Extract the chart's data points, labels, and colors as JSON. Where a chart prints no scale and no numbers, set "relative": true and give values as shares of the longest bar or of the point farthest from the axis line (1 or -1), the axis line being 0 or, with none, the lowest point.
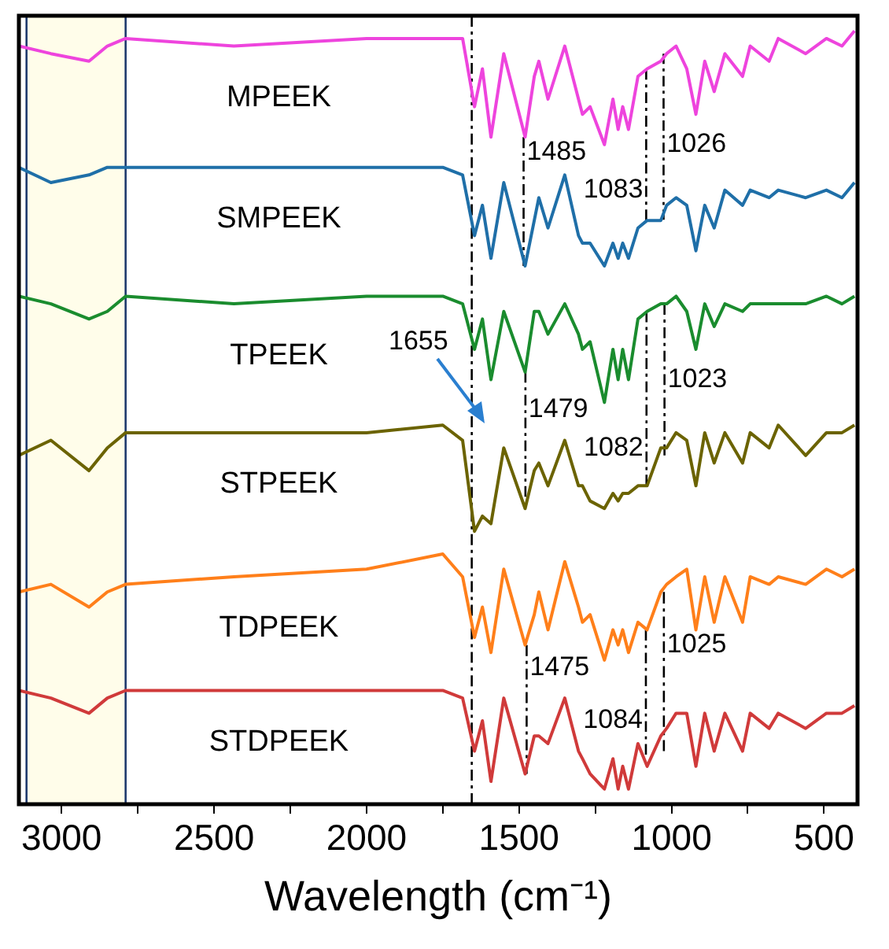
{
  "chart_data": {
    "type": "line",
    "relative": true,
    "xlabel": "Wavelength (cm⁻¹)",
    "xlim": [
      3140,
      390
    ],
    "xticks": [
      3000,
      {
        "value": 2750,
        "label": null
      },
      2500,
      {
        "value": 2250,
        "label": null
      },
      2000,
      {
        "value": 1750,
        "label": null
      },
      1500,
      {
        "value": 1250,
        "label": null
      },
      1000,
      {
        "value": 750,
        "label": null
      },
      500
    ],
    "legend": false,
    "marker": "none",
    "line_style": "solid",
    "x": [
      3140,
      3035,
      2910,
      2850,
      2790,
      2435,
      2000,
      1750,
      1685,
      1646,
      1620,
      1592,
      1550,
      1480,
      1450,
      1435,
      1405,
      1350,
      1305,
      1292,
      1267,
      1220,
      1192,
      1175,
      1160,
      1141,
      1110,
      1080,
      1035,
      1016,
      985,
      950,
      920,
      891,
      860,
      825,
      767,
      742,
      680,
      650,
      560,
      492,
      441,
      400
    ],
    "series": [
      {
        "name": "MPEEK",
        "color": "#ee44dd",
        "values": [
          0.98,
          0.97,
          0.96,
          0.98,
          0.99,
          0.98,
          0.99,
          0.99,
          0.99,
          0.9,
          0.95,
          0.86,
          0.97,
          0.86,
          0.94,
          0.96,
          0.91,
          0.98,
          0.91,
          0.89,
          0.9,
          0.85,
          0.91,
          0.87,
          0.9,
          0.87,
          0.94,
          0.95,
          0.96,
          0.97,
          0.98,
          0.95,
          0.89,
          0.96,
          0.92,
          0.97,
          0.94,
          0.98,
          0.96,
          0.99,
          0.97,
          0.99,
          0.98,
          1
        ]
      },
      {
        "name": "SMPEEK",
        "color": "#1f6fa8",
        "values": [
          0.82,
          0.8,
          0.81,
          0.82,
          0.82,
          0.82,
          0.82,
          0.82,
          0.81,
          0.73,
          0.77,
          0.7,
          0.8,
          0.69,
          0.75,
          0.78,
          0.74,
          0.81,
          0.73,
          0.72,
          0.72,
          0.69,
          0.72,
          0.7,
          0.72,
          0.7,
          0.74,
          0.75,
          0.75,
          0.77,
          0.78,
          0.77,
          0.71,
          0.77,
          0.74,
          0.79,
          0.77,
          0.79,
          0.78,
          0.79,
          0.78,
          0.79,
          0.78,
          0.8
        ]
      },
      {
        "name": "TPEEK",
        "color": "#1a8c2e",
        "values": [
          0.65,
          0.64,
          0.62,
          0.63,
          0.65,
          0.64,
          0.65,
          0.65,
          0.64,
          0.58,
          0.62,
          0.54,
          0.63,
          0.55,
          0.63,
          0.63,
          0.6,
          0.64,
          0.6,
          0.58,
          0.59,
          0.51,
          0.58,
          0.54,
          0.58,
          0.54,
          0.62,
          0.63,
          0.64,
          0.64,
          0.65,
          0.63,
          0.58,
          0.64,
          0.61,
          0.64,
          0.63,
          0.64,
          0.64,
          0.64,
          0.64,
          0.65,
          0.64,
          0.65
        ]
      },
      {
        "name": "STPEEK",
        "color": "#6b6300",
        "values": [
          0.44,
          0.46,
          0.42,
          0.45,
          0.47,
          0.47,
          0.47,
          0.48,
          0.46,
          0.34,
          0.36,
          0.35,
          0.45,
          0.37,
          0.42,
          0.43,
          0.4,
          0.46,
          0.4,
          0.4,
          0.38,
          0.37,
          0.39,
          0.38,
          0.39,
          0.39,
          0.4,
          0.4,
          0.45,
          0.45,
          0.47,
          0.46,
          0.4,
          0.47,
          0.43,
          0.47,
          0.43,
          0.47,
          0.45,
          0.48,
          0.44,
          0.47,
          0.47,
          0.48
        ]
      },
      {
        "name": "TDPEEK",
        "color": "#ff7f1a",
        "values": [
          0.26,
          0.27,
          0.24,
          0.26,
          0.27,
          0.28,
          0.29,
          0.31,
          0.28,
          0.2,
          0.24,
          0.18,
          0.29,
          0.19,
          0.23,
          0.26,
          0.21,
          0.3,
          0.24,
          0.22,
          0.23,
          0.17,
          0.21,
          0.19,
          0.21,
          0.18,
          0.22,
          0.21,
          0.26,
          0.27,
          0.28,
          0.29,
          0.21,
          0.28,
          0.22,
          0.28,
          0.22,
          0.28,
          0.27,
          0.28,
          0.27,
          0.29,
          0.28,
          0.29
        ]
      },
      {
        "name": "STDPEEK",
        "color": "#d03a3a",
        "values": [
          0.13,
          0.12,
          0.1,
          0.12,
          0.13,
          0.13,
          0.13,
          0.13,
          0.12,
          0.05,
          0.09,
          0.01,
          0.12,
          0.02,
          0.07,
          0.07,
          0.06,
          0.12,
          0.05,
          0.04,
          0.02,
          0,
          0.04,
          0,
          0.03,
          0,
          0.06,
          0.03,
          0.07,
          0.08,
          0.1,
          0.1,
          0.03,
          0.1,
          0.05,
          0.1,
          0.05,
          0.1,
          0.08,
          0.1,
          0.08,
          0.1,
          0.1,
          0.11
        ]
      },
      {
        "type": "line",
        "color": "#000000",
        "line_style": "dashed",
        "x": [
          1485,
          1485
        ],
        "values": [
          0.86,
          0.69
        ]
      },
      {
        "type": "line",
        "color": "#000000",
        "line_style": "dashed",
        "x": [
          1083,
          1083
        ],
        "values": [
          0.95,
          0.75
        ]
      },
      {
        "type": "line",
        "color": "#000000",
        "line_style": "dashed",
        "x": [
          1026,
          1026
        ],
        "values": [
          0.97,
          0.75
        ]
      },
      {
        "type": "line",
        "color": "#000000",
        "line_style": "dashed",
        "x": [
          1479,
          1479
        ],
        "values": [
          0.55,
          0.385
        ]
      },
      {
        "type": "line",
        "color": "#000000",
        "line_style": "dashed",
        "x": [
          1082,
          1082
        ],
        "values": [
          0.63,
          0.4
        ]
      },
      {
        "type": "line",
        "color": "#000000",
        "line_style": "dashed",
        "x": [
          1023,
          1023
        ],
        "values": [
          0.64,
          0.44
        ]
      },
      {
        "type": "line",
        "color": "#000000",
        "line_style": "dashed",
        "x": [
          1475,
          1475
        ],
        "values": [
          0.19,
          0.02
        ]
      },
      {
        "type": "line",
        "color": "#000000",
        "line_style": "dashed",
        "x": [
          1084,
          1084
        ],
        "values": [
          0.21,
          0.045
        ]
      },
      {
        "type": "line",
        "color": "#000000",
        "line_style": "dashed",
        "x": [
          1025,
          1025
        ],
        "values": [
          0.26,
          0.05
        ]
      }
    ],
    "ref_lines": [
      {
        "axis": "x",
        "value": 1655,
        "color": "#000000",
        "line_style": "dashed"
      }
    ],
    "bands": [
      {
        "axis": "x",
        "from": 3115,
        "to": 2790,
        "color": "#fffdea"
      }
    ],
    "annotations": [
      {
        "text": "1485",
        "x": 1485,
        "y": 0.84
      },
      {
        "text": "1083",
        "x": 1083,
        "y": 0.79
      },
      {
        "text": "1026",
        "x": 1026,
        "y": 0.85
      },
      {
        "text": "1655",
        "x": 1655,
        "y": 0.59
      },
      {
        "text": "1479",
        "x": 1479,
        "y": 0.5
      },
      {
        "text": "1082",
        "x": 1082,
        "y": 0.45
      },
      {
        "text": "1023",
        "x": 1023,
        "y": 0.54
      },
      {
        "text": "1475",
        "x": 1475,
        "y": 0.16
      },
      {
        "text": "1084",
        "x": 1084,
        "y": 0.09
      },
      {
        "text": "1025",
        "x": 1025,
        "y": 0.19
      }
    ]
  }
}
